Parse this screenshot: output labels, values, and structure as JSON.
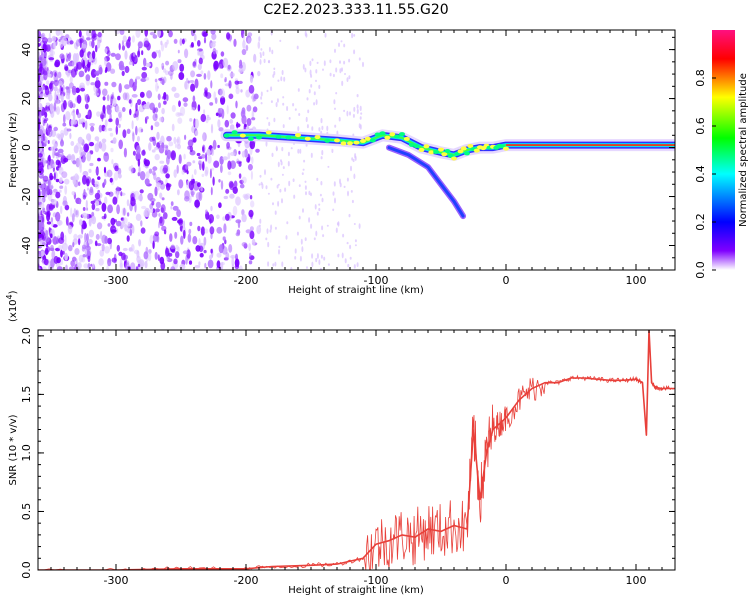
{
  "figure": {
    "title": "C2E2.2023.333.11.55.G20"
  },
  "chart_data": [
    {
      "type": "heatmap",
      "xlabel": "Height of straight line (km)",
      "ylabel": "Frequency (Hz)",
      "xlim": [
        -360,
        130
      ],
      "ylim": [
        -50,
        48
      ],
      "x_ticks": [
        -300,
        -200,
        -100,
        0,
        100
      ],
      "y_ticks": [
        -40,
        -20,
        0,
        20,
        40
      ],
      "colorbar": {
        "label": "Normalized spectral amplitude",
        "range": [
          0,
          1
        ],
        "ticks": [
          "0.0",
          "0.2",
          "0.4",
          "0.6",
          "0.8"
        ],
        "colors": [
          "#ffffff",
          "#8000ff",
          "#0000ff",
          "#00ffff",
          "#00ff00",
          "#ffff00",
          "#ff0000",
          "#ff0080"
        ]
      },
      "ridge": {
        "x": [
          -215,
          -190,
          -160,
          -130,
          -110,
          -95,
          -80,
          -65,
          -50,
          -40,
          -30,
          -20,
          -10,
          0,
          20,
          50,
          100,
          130
        ],
        "y": [
          5,
          5,
          4,
          3,
          2,
          5,
          4,
          0,
          -2,
          -3,
          -1,
          0,
          0,
          1,
          1,
          1,
          1,
          1
        ]
      },
      "secondary_branch": {
        "x": [
          -90,
          -75,
          -60,
          -50,
          -40,
          -33
        ],
        "y": [
          0,
          -3,
          -8,
          -15,
          -22,
          -28
        ]
      }
    },
    {
      "type": "line",
      "xlabel": "Height of straight line (km)",
      "ylabel": "SNR (10 * v/v)",
      "y_multiplier": "(x10",
      "y_multiplier_exp": "4",
      "xlim": [
        -360,
        130
      ],
      "ylim": [
        0,
        2.05
      ],
      "x_ticks": [
        -300,
        -200,
        -100,
        0,
        100
      ],
      "y_ticks": [
        "0.0",
        "0.5",
        "1.0",
        "1.5",
        "2.0"
      ],
      "series": [
        {
          "color": "#e8403a",
          "x": [
            -360,
            -300,
            -250,
            -200,
            -180,
            -150,
            -130,
            -110,
            -100,
            -90,
            -80,
            -70,
            -60,
            -50,
            -40,
            -30,
            -25,
            -20,
            -15,
            -10,
            -5,
            0,
            10,
            20,
            30,
            40,
            50,
            60,
            70,
            80,
            90,
            100,
            105,
            108,
            110,
            112,
            115,
            120,
            130
          ],
          "y": [
            0.0,
            0.0,
            0.01,
            0.01,
            0.03,
            0.04,
            0.05,
            0.1,
            0.22,
            0.25,
            0.3,
            0.28,
            0.35,
            0.33,
            0.38,
            0.35,
            1.2,
            0.6,
            1.0,
            1.2,
            1.25,
            1.3,
            1.45,
            1.55,
            1.6,
            1.6,
            1.64,
            1.64,
            1.63,
            1.62,
            1.62,
            1.63,
            1.6,
            1.15,
            2.05,
            1.6,
            1.56,
            1.55,
            1.55
          ]
        }
      ]
    }
  ]
}
